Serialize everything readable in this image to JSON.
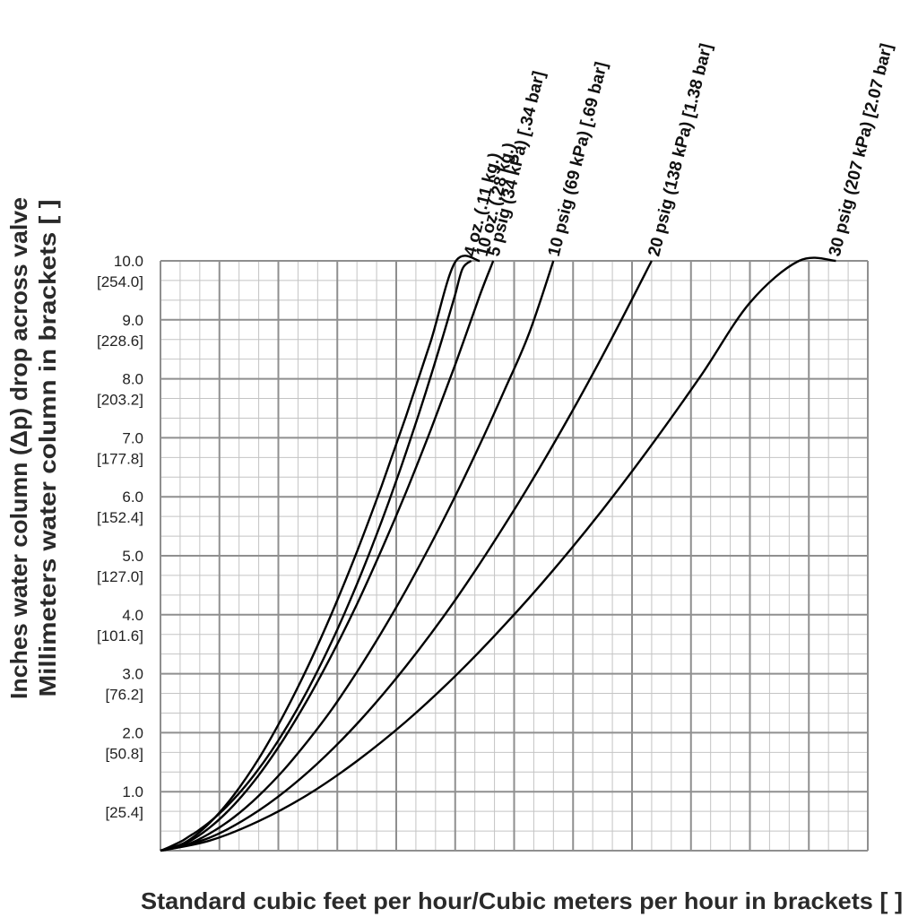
{
  "chart_data": {
    "type": "line",
    "xlabel": "Standard cubic feet per hour/Cubic meters per hour in brackets [ ]",
    "ylabel": "Inches water column (Δp) drop across valve",
    "ylabel2": "Millimeters water column in brackets [ ]",
    "ylim": [
      0,
      10
    ],
    "yticks": [
      {
        "value": 1,
        "label": "1.0",
        "mm": "[25.4]"
      },
      {
        "value": 2,
        "label": "2.0",
        "mm": "[50.8]"
      },
      {
        "value": 3,
        "label": "3.0",
        "mm": "[76.2]"
      },
      {
        "value": 4,
        "label": "4.0",
        "mm": "[101.6]"
      },
      {
        "value": 5,
        "label": "5.0",
        "mm": "[127.0]"
      },
      {
        "value": 6,
        "label": "6.0",
        "mm": "[152.4]"
      },
      {
        "value": 7,
        "label": "7.0",
        "mm": "[177.8]"
      },
      {
        "value": 8,
        "label": "8.0",
        "mm": "[203.2]"
      },
      {
        "value": 9,
        "label": "9.0",
        "mm": "[228.6]"
      },
      {
        "value": 10,
        "label": "10.0",
        "mm": "[254.0]"
      }
    ],
    "x_major_divisions": 12,
    "x_minor_per_major": 3,
    "y_minor_per_major": 3,
    "grid": true,
    "series": [
      {
        "name": "4 oz. (.11 kg.)",
        "x": [
          0,
          3,
          6,
          9,
          12,
          15,
          18,
          21,
          24,
          27,
          30,
          33,
          36,
          39,
          42,
          45,
          48,
          51,
          54,
          57,
          60,
          63,
          66,
          69,
          72,
          75,
          78,
          81,
          84,
          87,
          90,
          93,
          96,
          99,
          102,
          105,
          108,
          111,
          114,
          117,
          120,
          123,
          126.5
        ],
        "y": [
          0,
          0.05,
          0.11,
          0.17,
          0.25,
          0.33,
          0.42,
          0.52,
          0.63,
          0.75,
          0.88,
          1.02,
          1.17,
          1.33,
          1.5,
          1.68,
          1.87,
          2.07,
          2.28,
          2.5,
          2.73,
          2.97,
          3.22,
          3.48,
          3.75,
          4.03,
          4.32,
          4.62,
          4.93,
          5.25,
          5.58,
          5.92,
          6.27,
          6.63,
          7.0,
          7.38,
          7.77,
          8.17,
          8.58,
          9.0,
          9.43,
          9.87,
          10.0
        ]
      },
      {
        "name": "10 oz. (.28 kg.)",
        "x": [
          0,
          10,
          20,
          30,
          40,
          50,
          60,
          70,
          80,
          90,
          100,
          110,
          120,
          130
        ],
        "y": [
          0,
          0.14,
          0.47,
          0.95,
          1.56,
          2.29,
          3.12,
          4.05,
          5.07,
          6.18,
          7.37,
          8.63,
          9.98,
          10.0
        ]
      },
      {
        "name": "5 psig (34 kPa) [.34 bar]",
        "x": [
          0,
          10,
          20,
          30,
          40,
          50,
          60,
          70,
          80,
          90,
          100,
          110,
          120,
          130,
          135.5
        ],
        "y": [
          0,
          0.12,
          0.39,
          0.78,
          1.28,
          1.88,
          2.57,
          3.34,
          4.18,
          5.1,
          6.08,
          7.13,
          8.24,
          9.41,
          10.0
        ]
      },
      {
        "name": "10 psig (69 kPa) [.69 bar]",
        "x": [
          0,
          10,
          20,
          30,
          40,
          50,
          60,
          70,
          80,
          90,
          100,
          110,
          120,
          130,
          140,
          150,
          160
        ],
        "y": [
          0,
          0.09,
          0.29,
          0.57,
          0.93,
          1.36,
          1.86,
          2.41,
          3.03,
          3.7,
          4.42,
          5.19,
          6.01,
          6.88,
          7.8,
          8.76,
          10.0
        ]
      },
      {
        "name": "20 psig (138 kPa) [1.38 bar]",
        "x": [
          0,
          20,
          40,
          60,
          80,
          100,
          120,
          140,
          160,
          180,
          200
        ],
        "y": [
          0,
          0.22,
          0.68,
          1.33,
          2.15,
          3.13,
          4.25,
          5.51,
          6.89,
          8.39,
          10.0
        ]
      },
      {
        "name": "30 psig (207 kPa) [2.07 bar]",
        "x": [
          0,
          20,
          40,
          60,
          80,
          100,
          120,
          140,
          160,
          180,
          200,
          220,
          240,
          260,
          275
        ],
        "y": [
          0,
          0.17,
          0.5,
          0.95,
          1.52,
          2.19,
          2.96,
          3.82,
          4.76,
          5.78,
          6.88,
          8.05,
          9.29,
          10.0,
          10.0
        ]
      }
    ]
  }
}
